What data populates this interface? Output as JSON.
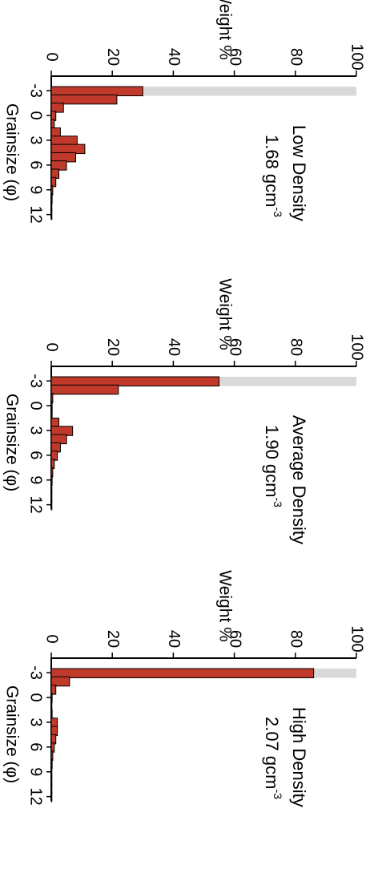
{
  "figure": {
    "orientation": "rotated-90-clockwise",
    "bar_fill": "#c0392b",
    "bar_stroke": "#000000",
    "background_bar_fill": "#d9d9d9"
  },
  "chart_data": [
    {
      "type": "bar",
      "title": "Low Density",
      "subtitle": "1.68 gcm",
      "subtitle_sup": "-3",
      "xlabel": "Grainsize (φ)",
      "ylabel": "Weight %",
      "xticks": [
        "-3",
        "0",
        "3",
        "6",
        "9",
        "12"
      ],
      "yticks": [
        "0",
        "20",
        "40",
        "60",
        "80",
        "100"
      ],
      "ylim": [
        0,
        100
      ],
      "categories": [
        -3,
        -2,
        -1,
        0,
        1,
        2,
        3,
        4,
        5,
        6,
        7,
        8,
        9,
        10,
        11,
        12
      ],
      "values": [
        30,
        21.5,
        4,
        1.5,
        1,
        3,
        8.5,
        11,
        8,
        5,
        2.5,
        1.5,
        0.5,
        0.3,
        0.2,
        0.1
      ],
      "background_bar": {
        "category": -3,
        "value": 100
      }
    },
    {
      "type": "bar",
      "title": "Average Density",
      "subtitle": "1.90 gcm",
      "subtitle_sup": "-3",
      "xlabel": "Grainsize (φ)",
      "ylabel": "Weight %",
      "xticks": [
        "-3",
        "0",
        "3",
        "6",
        "9",
        "12"
      ],
      "yticks": [
        "0",
        "20",
        "40",
        "60",
        "80",
        "100"
      ],
      "ylim": [
        0,
        100
      ],
      "categories": [
        -3,
        -2,
        -1,
        0,
        1,
        2,
        3,
        4,
        5,
        6,
        7,
        8,
        9,
        10,
        11,
        12
      ],
      "values": [
        55,
        22,
        0.5,
        0.3,
        0.3,
        2.5,
        7,
        5,
        3,
        2,
        1,
        0.5,
        0.3,
        0.2,
        0.1,
        0.1
      ],
      "background_bar": {
        "category": -3,
        "value": 100
      }
    },
    {
      "type": "bar",
      "title": "High Density",
      "subtitle": "2.07 gcm",
      "subtitle_sup": "-3",
      "xlabel": "Grainsize (φ)",
      "ylabel": "Weight %",
      "xticks": [
        "-3",
        "0",
        "3",
        "6",
        "9",
        "12"
      ],
      "yticks": [
        "0",
        "20",
        "40",
        "60",
        "80",
        "100"
      ],
      "ylim": [
        0,
        100
      ],
      "categories": [
        -3,
        -2,
        -1,
        0,
        1,
        2,
        3,
        4,
        5,
        6,
        7,
        8,
        9,
        10,
        11,
        12
      ],
      "values": [
        86,
        6,
        1.5,
        0.3,
        0.2,
        0.3,
        2,
        2,
        1.5,
        1,
        0.5,
        0.3,
        0.2,
        0.1,
        0.1,
        0.1
      ],
      "background_bar": {
        "category": -3,
        "value": 100
      }
    }
  ]
}
